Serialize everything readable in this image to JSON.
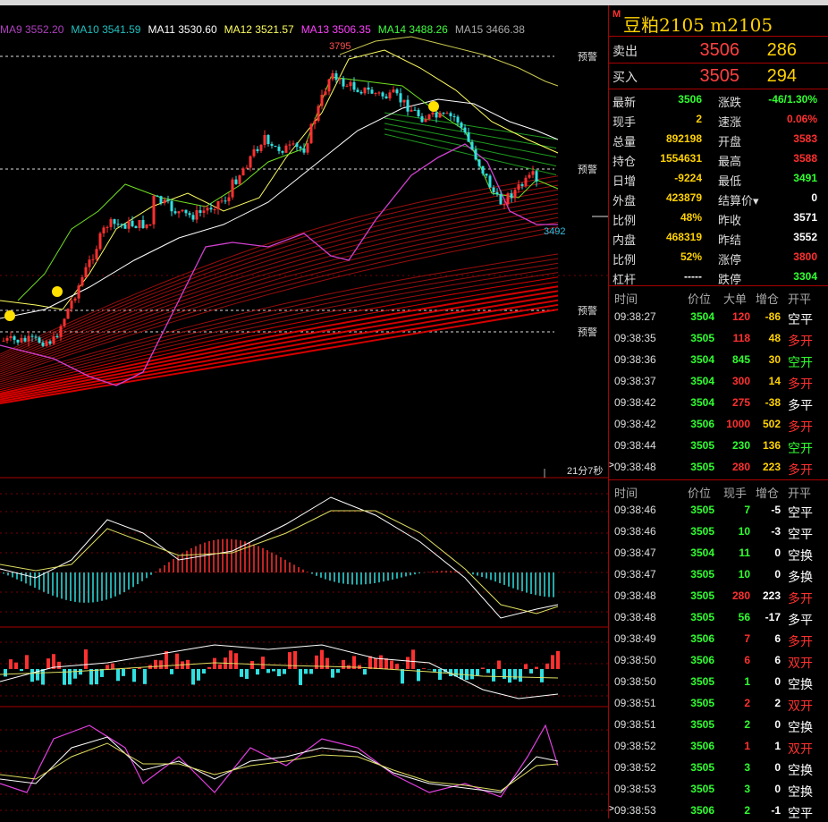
{
  "ma_legend": [
    {
      "label": "MA9 3552.20",
      "color": "#b040c0"
    },
    {
      "label": "MA10 3541.59",
      "color": "#20c0c0"
    },
    {
      "label": "MA11 3530.60",
      "color": "#ffffff"
    },
    {
      "label": "MA12 3521.57",
      "color": "#ffff60"
    },
    {
      "label": "MA13 3506.35",
      "color": "#ff40ff"
    },
    {
      "label": "MA14 3488.26",
      "color": "#40ff40"
    },
    {
      "label": "MA15 3466.38",
      "color": "#aaaaaa"
    }
  ],
  "chart": {
    "warning_label": "预警",
    "high_label": "3795",
    "last_label": "3492",
    "countdown": "21分7秒"
  },
  "side": {
    "m_badge": "M",
    "title": "豆粕2105  m2105",
    "sell_label": "卖出",
    "sell_price": "3506",
    "sell_vol": "286",
    "buy_label": "买入",
    "buy_price": "3505",
    "buy_vol": "294",
    "stats": [
      {
        "l1": "最新",
        "v1": "3506",
        "c1": "grn",
        "l2": "涨跌",
        "v2": "-46/1.30%",
        "c2": "grn"
      },
      {
        "l1": "现手",
        "v1": "2",
        "c1": "yel",
        "l2": "速涨",
        "v2": "0.06%",
        "c2": "red"
      },
      {
        "l1": "总量",
        "v1": "892198",
        "c1": "yel",
        "l2": "开盘",
        "v2": "3583",
        "c2": "red"
      },
      {
        "l1": "持仓",
        "v1": "1554631",
        "c1": "yel",
        "l2": "最高",
        "v2": "3588",
        "c2": "red"
      },
      {
        "l1": "日增",
        "v1": "-9224",
        "c1": "yel",
        "l2": "最低",
        "v2": "3491",
        "c2": "grn"
      },
      {
        "l1": "外盘",
        "v1": "423879",
        "c1": "yel",
        "l2": "结算价▾",
        "v2": "0",
        "c2": "wht"
      },
      {
        "l1": "比例",
        "v1": "48%",
        "c1": "yel",
        "l2": "昨收",
        "v2": "3571",
        "c2": "wht"
      },
      {
        "l1": "内盘",
        "v1": "468319",
        "c1": "yel",
        "l2": "昨结",
        "v2": "3552",
        "c2": "wht"
      },
      {
        "l1": "比例",
        "v1": "52%",
        "c1": "yel",
        "l2": "涨停",
        "v2": "3800",
        "c2": "red"
      },
      {
        "l1": "杠杆",
        "v1": "-----",
        "c1": "wht",
        "l2": "跌停",
        "v2": "3304",
        "c2": "grn"
      }
    ],
    "big_head": {
      "time": "时间",
      "price": "价位",
      "vol": "大单",
      "oi": "增仓",
      "type": "开平"
    },
    "big_rows": [
      {
        "time": "09:38:27",
        "price": "3504",
        "vol": "120",
        "oi": "-86",
        "type": "空平",
        "tc": "wht"
      },
      {
        "time": "09:38:35",
        "price": "3505",
        "vol": "118",
        "oi": "48",
        "type": "多开",
        "tc": "red"
      },
      {
        "time": "09:38:36",
        "price": "3504",
        "vol": "845",
        "oi": "30",
        "type": "空开",
        "tc": "grn"
      },
      {
        "time": "09:38:37",
        "price": "3504",
        "vol": "300",
        "oi": "14",
        "type": "多开",
        "tc": "red"
      },
      {
        "time": "09:38:42",
        "price": "3504",
        "vol": "275",
        "oi": "-38",
        "type": "多平",
        "tc": "wht"
      },
      {
        "time": "09:38:42",
        "price": "3506",
        "vol": "1000",
        "oi": "502",
        "type": "多开",
        "tc": "red"
      },
      {
        "time": "09:38:44",
        "price": "3505",
        "vol": "230",
        "oi": "136",
        "type": "空开",
        "tc": "grn"
      },
      {
        "time": "09:38:48",
        "price": "3505",
        "vol": "280",
        "oi": "223",
        "type": "多开",
        "tc": "red"
      }
    ],
    "tick_head": {
      "time": "时间",
      "price": "价位",
      "vol": "现手",
      "oi": "增仓",
      "type": "开平"
    },
    "tick_rows": [
      {
        "time": "09:38:46",
        "price": "3505",
        "vol": "7",
        "oi": "-5",
        "type": "空平",
        "tc": "wht"
      },
      {
        "time": "09:38:46",
        "price": "3505",
        "vol": "10",
        "oi": "-3",
        "type": "空平",
        "tc": "wht"
      },
      {
        "time": "09:38:47",
        "price": "3504",
        "vol": "11",
        "oi": "0",
        "type": "空换",
        "tc": "wht"
      },
      {
        "time": "09:38:47",
        "price": "3505",
        "vol": "10",
        "oi": "0",
        "type": "多换",
        "tc": "wht"
      },
      {
        "time": "09:38:48",
        "price": "3505",
        "vol": "280",
        "oi": "223",
        "type": "多开",
        "tc": "red"
      },
      {
        "time": "09:38:48",
        "price": "3505",
        "vol": "56",
        "oi": "-17",
        "type": "多平",
        "tc": "wht"
      },
      {
        "time": "09:38:49",
        "price": "3506",
        "vol": "7",
        "oi": "6",
        "type": "多开",
        "tc": "red"
      },
      {
        "time": "09:38:50",
        "price": "3506",
        "vol": "6",
        "oi": "6",
        "type": "双开",
        "tc": "red"
      },
      {
        "time": "09:38:50",
        "price": "3505",
        "vol": "1",
        "oi": "0",
        "type": "空换",
        "tc": "wht"
      },
      {
        "time": "09:38:51",
        "price": "3505",
        "vol": "2",
        "oi": "2",
        "type": "双开",
        "tc": "red"
      },
      {
        "time": "09:38:51",
        "price": "3505",
        "vol": "2",
        "oi": "0",
        "type": "空换",
        "tc": "wht"
      },
      {
        "time": "09:38:52",
        "price": "3506",
        "vol": "1",
        "oi": "1",
        "type": "双开",
        "tc": "red"
      },
      {
        "time": "09:38:52",
        "price": "3505",
        "vol": "3",
        "oi": "0",
        "type": "空换",
        "tc": "wht"
      },
      {
        "time": "09:38:53",
        "price": "3505",
        "vol": "3",
        "oi": "0",
        "type": "空换",
        "tc": "wht"
      },
      {
        "time": "09:38:53",
        "price": "3506",
        "vol": "2",
        "oi": "-1",
        "type": "空平",
        "tc": "wht"
      }
    ]
  },
  "colors": {
    "up": "#ff3030",
    "down": "#30e0e0",
    "border": "#aa0000",
    "grid": "#7a0000"
  }
}
